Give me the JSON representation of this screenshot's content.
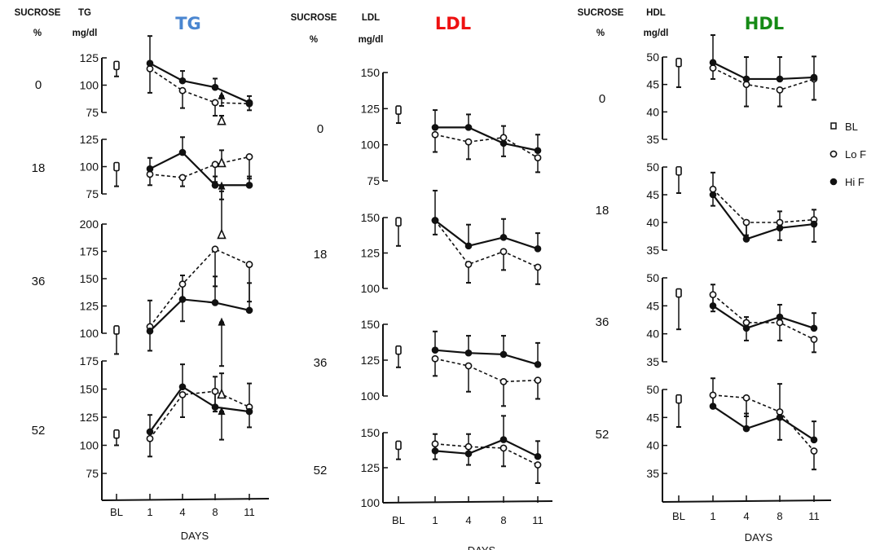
{
  "chart_data": [
    {
      "type": "line",
      "title": "TG",
      "title_color": "#4a86d0",
      "row_header": [
        "SUCROSE",
        "%"
      ],
      "ylabel": [
        "TG",
        "mg/dl"
      ],
      "xlabel": "DAYS",
      "categories": [
        "BL",
        "1",
        "4",
        "8",
        "11"
      ],
      "panels": [
        {
          "sucrose": "0",
          "ylim": [
            75,
            125
          ],
          "ticks": [
            "75",
            "100",
            "125"
          ],
          "baseline": {
            "value": 118,
            "err": 10
          },
          "series": [
            {
              "name": "Lo F",
              "marker": "open-circle",
              "dashed": true,
              "values": [
                115,
                95,
                84,
                83
              ],
              "err": [
                22,
                16,
                12,
                6
              ]
            },
            {
              "name": "Hi F",
              "marker": "filled-circle",
              "dashed": false,
              "values": [
                120,
                104,
                98,
                84
              ],
              "err": [
                25,
                9,
                8,
                6
              ]
            }
          ],
          "extra_markers": [
            {
              "marker": "filled-triangle",
              "x": "8",
              "value": 90,
              "err": 9
            },
            {
              "marker": "open-triangle",
              "x": "8",
              "value": 67,
              "err": 5
            }
          ]
        },
        {
          "sucrose": "18",
          "ylim": [
            75,
            125
          ],
          "ticks": [
            "75",
            "100",
            "125"
          ],
          "baseline": {
            "value": 100,
            "err": 18
          },
          "series": [
            {
              "name": "Lo F",
              "marker": "open-circle",
              "dashed": true,
              "values": [
                93,
                90,
                102,
                109
              ],
              "err": [
                10,
                8,
                16,
                20
              ]
            },
            {
              "name": "Hi F",
              "marker": "filled-circle",
              "dashed": false,
              "values": [
                98,
                113,
                83,
                83
              ],
              "err": [
                10,
                14,
                8,
                8
              ]
            }
          ],
          "extra_markers": [
            {
              "marker": "open-triangle",
              "x": "8",
              "value": 103,
              "err": 12
            },
            {
              "marker": "filled-triangle",
              "x": "8",
              "value": 82,
              "err": 12
            }
          ]
        },
        {
          "sucrose": "36",
          "ylim": [
            100,
            200
          ],
          "ticks": [
            "100",
            "125",
            "150",
            "175",
            "200"
          ],
          "baseline": {
            "value": 103,
            "err": 22
          },
          "series": [
            {
              "name": "Lo F",
              "marker": "open-circle",
              "dashed": true,
              "values": [
                106,
                145,
                177,
                163
              ],
              "err": [
                22,
                34,
                34,
                34
              ]
            },
            {
              "name": "Hi F",
              "marker": "filled-circle",
              "dashed": false,
              "values": [
                102,
                131,
                128,
                121
              ],
              "err": [
                28,
                22,
                24,
                25
              ]
            }
          ],
          "extra_markers": [
            {
              "marker": "open-triangle",
              "x": "8",
              "value": 190,
              "err": 40
            },
            {
              "marker": "filled-triangle",
              "x": "8",
              "value": 110,
              "err": 40
            }
          ]
        },
        {
          "sucrose": "52",
          "ylim": [
            75,
            175
          ],
          "ticks": [
            "75",
            "100",
            "125",
            "150",
            "175"
          ],
          "baseline": {
            "value": 110,
            "err": 10
          },
          "series": [
            {
              "name": "Lo F",
              "marker": "open-circle",
              "dashed": true,
              "values": [
                106,
                145,
                148,
                134
              ],
              "err": [
                16,
                20,
                18,
                18
              ]
            },
            {
              "name": "Hi F",
              "marker": "filled-circle",
              "dashed": false,
              "values": [
                112,
                152,
                134,
                130
              ],
              "err": [
                15,
                20,
                27,
                25
              ]
            }
          ],
          "extra_markers": [
            {
              "marker": "open-triangle",
              "x": "8",
              "value": 145,
              "err": 19
            },
            {
              "marker": "filled-triangle",
              "x": "8",
              "value": 130,
              "err": 25
            }
          ]
        }
      ]
    },
    {
      "type": "line",
      "title": "LDL",
      "title_color": "#ee1111",
      "row_header": [
        "SUCROSE",
        "%"
      ],
      "ylabel": [
        "LDL",
        "mg/dl"
      ],
      "xlabel": "DAYS",
      "categories": [
        "BL",
        "1",
        "4",
        "8",
        "11"
      ],
      "panels": [
        {
          "sucrose": "0",
          "ylim": [
            75,
            150
          ],
          "ticks": [
            "75",
            "100",
            "125",
            "150"
          ],
          "baseline": {
            "value": 124,
            "err": 9
          },
          "series": [
            {
              "name": "Lo F",
              "marker": "open-circle",
              "dashed": true,
              "values": [
                107,
                102,
                105,
                91
              ],
              "err": [
                12,
                12,
                13,
                10
              ]
            },
            {
              "name": "Hi F",
              "marker": "filled-circle",
              "dashed": false,
              "values": [
                112,
                112,
                101,
                96
              ],
              "err": [
                12,
                9,
                12,
                11
              ]
            }
          ]
        },
        {
          "sucrose": "18",
          "ylim": [
            100,
            150
          ],
          "ticks": [
            "100",
            "125",
            "150"
          ],
          "baseline": {
            "value": 147,
            "err": 17
          },
          "series": [
            {
              "name": "Lo F",
              "marker": "open-circle",
              "dashed": true,
              "values": [
                148,
                117,
                126,
                115
              ],
              "err": [
                10,
                13,
                13,
                12
              ]
            },
            {
              "name": "Hi F",
              "marker": "filled-circle",
              "dashed": false,
              "values": [
                148,
                130,
                136,
                128
              ],
              "err": [
                21,
                15,
                13,
                11
              ]
            }
          ]
        },
        {
          "sucrose": "36",
          "ylim": [
            100,
            150
          ],
          "ticks": [
            "100",
            "125",
            "150"
          ],
          "baseline": {
            "value": 132,
            "err": 12
          },
          "series": [
            {
              "name": "Lo F",
              "marker": "open-circle",
              "dashed": true,
              "values": [
                126,
                121,
                110,
                111
              ],
              "err": [
                12,
                18,
                17,
                13
              ]
            },
            {
              "name": "Hi F",
              "marker": "filled-circle",
              "dashed": false,
              "values": [
                132,
                130,
                129,
                122
              ],
              "err": [
                13,
                12,
                13,
                15
              ]
            }
          ]
        },
        {
          "sucrose": "52",
          "ylim": [
            100,
            150
          ],
          "ticks": [
            "100",
            "125",
            "150"
          ],
          "baseline": {
            "value": 141,
            "err": 10
          },
          "series": [
            {
              "name": "Lo F",
              "marker": "open-circle",
              "dashed": true,
              "values": [
                142,
                140,
                139,
                127
              ],
              "err": [
                11,
                13,
                13,
                13
              ]
            },
            {
              "name": "Hi F",
              "marker": "filled-circle",
              "dashed": false,
              "values": [
                137,
                135,
                145,
                133
              ],
              "err": [
                12,
                14,
                17,
                11
              ]
            }
          ]
        }
      ]
    },
    {
      "type": "line",
      "title": "HDL",
      "title_color": "#158a15",
      "row_header": [
        "SUCROSE",
        "%"
      ],
      "ylabel": [
        "HDL",
        "mg/dl"
      ],
      "xlabel": "DAYS",
      "categories": [
        "BL",
        "1",
        "4",
        "8",
        "11"
      ],
      "legend": {
        "position": "right",
        "items": [
          {
            "label": "BL",
            "marker": "open-square"
          },
          {
            "label": "Lo F",
            "marker": "open-circle"
          },
          {
            "label": "Hi F",
            "marker": "filled-circle"
          }
        ]
      },
      "panels": [
        {
          "sucrose": "0",
          "ylim": [
            35,
            50
          ],
          "ticks": [
            "35",
            "40",
            "45",
            "50"
          ],
          "baseline": {
            "value": 49,
            "err": 4.5
          },
          "series": [
            {
              "name": "Lo F",
              "marker": "open-circle",
              "dashed": true,
              "values": [
                48,
                45,
                44,
                46
              ],
              "err": [
                2,
                4,
                3,
                3.8
              ]
            },
            {
              "name": "Hi F",
              "marker": "filled-circle",
              "dashed": false,
              "values": [
                49,
                46,
                46,
                46.3
              ],
              "err": [
                5,
                4,
                4,
                3.8
              ]
            }
          ]
        },
        {
          "sucrose": "18",
          "ylim": [
            35,
            50
          ],
          "ticks": [
            "35",
            "40",
            "45",
            "50"
          ],
          "baseline": {
            "value": 49.3,
            "err": 4
          },
          "series": [
            {
              "name": "Lo F",
              "marker": "open-circle",
              "dashed": true,
              "values": [
                46,
                40,
                40,
                40.5
              ],
              "err": [
                3,
                2.3,
                3.2,
                4
              ]
            },
            {
              "name": "Hi F",
              "marker": "filled-circle",
              "dashed": false,
              "values": [
                45,
                37,
                39,
                39.7
              ],
              "err": [
                4,
                3,
                3,
                2.6
              ]
            }
          ]
        },
        {
          "sucrose": "36",
          "ylim": [
            35,
            50
          ],
          "ticks": [
            "35",
            "40",
            "45",
            "50"
          ],
          "baseline": {
            "value": 47.3,
            "err": 6.5
          },
          "series": [
            {
              "name": "Lo F",
              "marker": "open-circle",
              "dashed": true,
              "values": [
                47,
                42,
                42,
                39
              ],
              "err": [
                3,
                3.2,
                3.2,
                2.3
              ]
            },
            {
              "name": "Hi F",
              "marker": "filled-circle",
              "dashed": false,
              "values": [
                45,
                41,
                43,
                41
              ],
              "err": [
                3.8,
                2,
                2.2,
                2.7
              ]
            }
          ]
        },
        {
          "sucrose": "52",
          "ylim": [
            35,
            50
          ],
          "ticks": [
            "35",
            "40",
            "45",
            "50"
          ],
          "baseline": {
            "value": 48.3,
            "err": 5
          },
          "series": [
            {
              "name": "Lo F",
              "marker": "open-circle",
              "dashed": true,
              "values": [
                49,
                48.5,
                46,
                39
              ],
              "err": [
                2,
                3.3,
                5,
                3.3
              ]
            },
            {
              "name": "Hi F",
              "marker": "filled-circle",
              "dashed": false,
              "values": [
                47,
                43,
                45,
                41
              ],
              "err": [
                5,
                2.7,
                6,
                3.3
              ]
            }
          ]
        }
      ]
    }
  ]
}
